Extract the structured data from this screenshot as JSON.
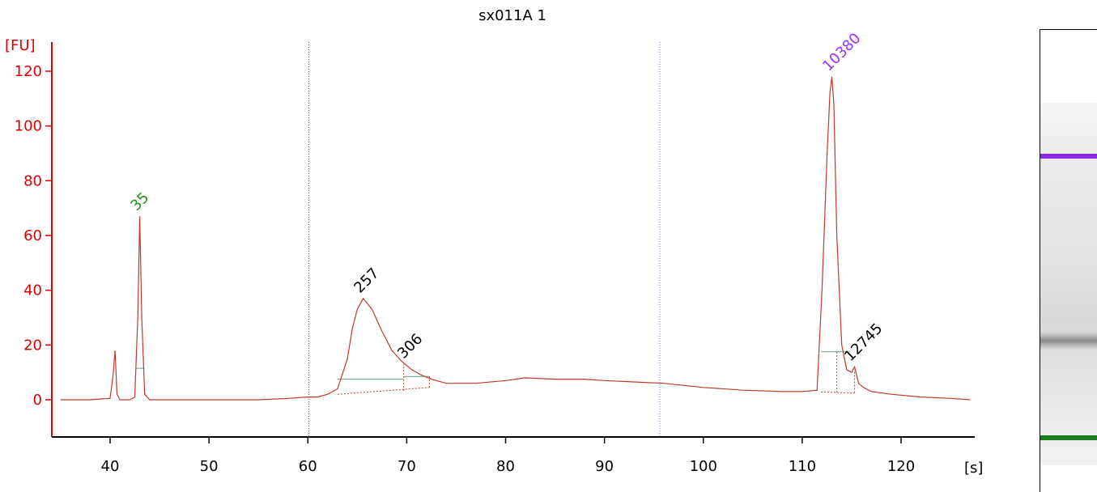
{
  "chart_data": {
    "type": "line",
    "title": "sx011A 1",
    "ylabel": "[FU]",
    "xlabel": "[s]",
    "xlim": [
      35,
      127
    ],
    "ylim": [
      -13,
      130
    ],
    "x_ticks": [
      40,
      50,
      60,
      70,
      80,
      90,
      100,
      110,
      120
    ],
    "y_ticks": [
      0,
      20,
      40,
      60,
      80,
      100,
      120
    ],
    "grid": false,
    "colors": {
      "axis": "#dd0000",
      "trace": "#c0392b",
      "baseline": "#5f9f7f",
      "marker_green": "#228b22",
      "marker_purple": "#9b30ff",
      "annotation": "#000000",
      "dotline_left": "#555577",
      "dotline_right": "#7777ee"
    },
    "markers_vertical": [
      {
        "x": 60.1,
        "style": "dotted",
        "color": "#555577"
      },
      {
        "x": 95.6,
        "style": "dotted",
        "color": "#7777ee"
      }
    ],
    "peak_labels": [
      {
        "label": "35",
        "x": 43.0,
        "y": 67,
        "color": "#228b22"
      },
      {
        "label": "257",
        "x": 65.6,
        "y": 37,
        "color": "#000000"
      },
      {
        "label": "306",
        "x": 70.0,
        "y": 13,
        "color": "#000000"
      },
      {
        "label": "10380",
        "x": 113.0,
        "y": 118,
        "color": "#9b30ff"
      },
      {
        "label": "12745",
        "x": 115.2,
        "y": 12,
        "color": "#000000"
      }
    ],
    "series": [
      {
        "x": [
          35,
          38,
          40.0,
          40.3,
          40.5,
          40.7,
          41.0,
          42.0,
          42.5,
          42.8,
          43.0,
          43.2,
          43.5,
          44.0,
          50,
          55,
          58,
          60,
          61,
          62,
          63,
          64,
          64.5,
          65,
          65.6,
          66.5,
          67.5,
          68.5,
          69.5,
          70.5,
          71.5,
          72.5,
          74,
          77,
          80,
          82,
          85,
          88,
          90,
          93,
          96,
          100,
          104,
          108,
          110,
          111.5,
          112.0,
          112.5,
          112.8,
          113.0,
          113.2,
          113.5,
          114.0,
          114.5,
          115.0,
          115.3,
          115.7,
          116.2,
          117,
          119,
          122,
          125,
          127
        ],
        "y": [
          0,
          0,
          0.5,
          9,
          18,
          2,
          0,
          0,
          1,
          30,
          67,
          30,
          2,
          0,
          0,
          0,
          0.5,
          1,
          1,
          2,
          4,
          15,
          26,
          33,
          37,
          33,
          25,
          18,
          14,
          11,
          9,
          7.5,
          6,
          6,
          7,
          8,
          7.5,
          7.5,
          7,
          6.5,
          6,
          4.5,
          3.5,
          3,
          3,
          3.5,
          40,
          88,
          112,
          118,
          108,
          60,
          20,
          11,
          10,
          12,
          6,
          4.5,
          3,
          2,
          1,
          0.5,
          0
        ]
      }
    ],
    "baselines": [
      {
        "x": [
          42.6,
          43.5
        ],
        "y": [
          11.5,
          11.5
        ]
      },
      {
        "x": [
          63.0,
          69.7
        ],
        "y": [
          7.5,
          7.5
        ]
      },
      {
        "x": [
          69.7,
          72.3
        ],
        "y": [
          8.5,
          8.5
        ]
      },
      {
        "x": [
          111.9,
          114.8
        ],
        "y": [
          17.5,
          17.5
        ]
      }
    ]
  },
  "gel": {
    "bands": [
      {
        "position": 0.147,
        "color": "#8a2be2"
      },
      {
        "position": 0.657,
        "color": "#8c8c8c"
      },
      {
        "position": 0.924,
        "color": "#1a7f1a"
      }
    ]
  }
}
